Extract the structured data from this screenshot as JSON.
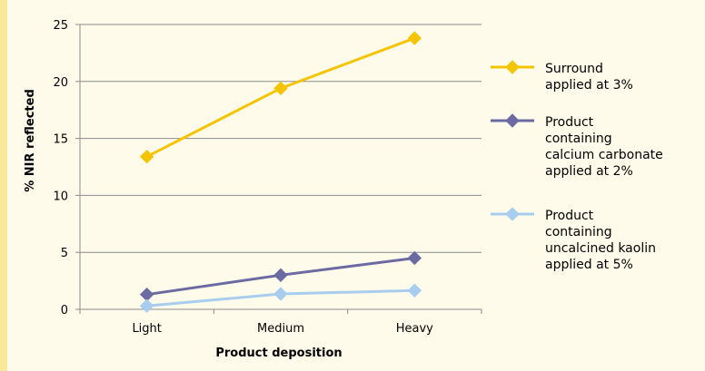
{
  "chart_data": {
    "type": "line",
    "categories": [
      "Light",
      "Medium",
      "Heavy"
    ],
    "series": [
      {
        "name": "Surround applied at 3%",
        "legend_lines": [
          "Surround",
          "applied at 3%"
        ],
        "color": "#f5c400",
        "values": [
          13.4,
          19.4,
          23.8
        ]
      },
      {
        "name": "Product containing calcium carbonate applied at 2%",
        "legend_lines": [
          "Product",
          "containing",
          "calcium carbonate",
          "applied at 2%"
        ],
        "color": "#6b6aa2",
        "values": [
          1.3,
          3.0,
          4.5
        ]
      },
      {
        "name": "Product containing uncalcined kaolin applied at 5%",
        "legend_lines": [
          "Product",
          "containing",
          "uncalcined kaolin",
          "applied at 5%"
        ],
        "color": "#a8cdee",
        "values": [
          0.3,
          1.35,
          1.65
        ]
      }
    ],
    "title": "",
    "xlabel": "Product deposition",
    "ylabel": "% NIR reflected",
    "ylim": [
      0,
      25
    ],
    "yticks": [
      0,
      5,
      10,
      15,
      20,
      25
    ],
    "grid": true,
    "legend_position": "right"
  }
}
